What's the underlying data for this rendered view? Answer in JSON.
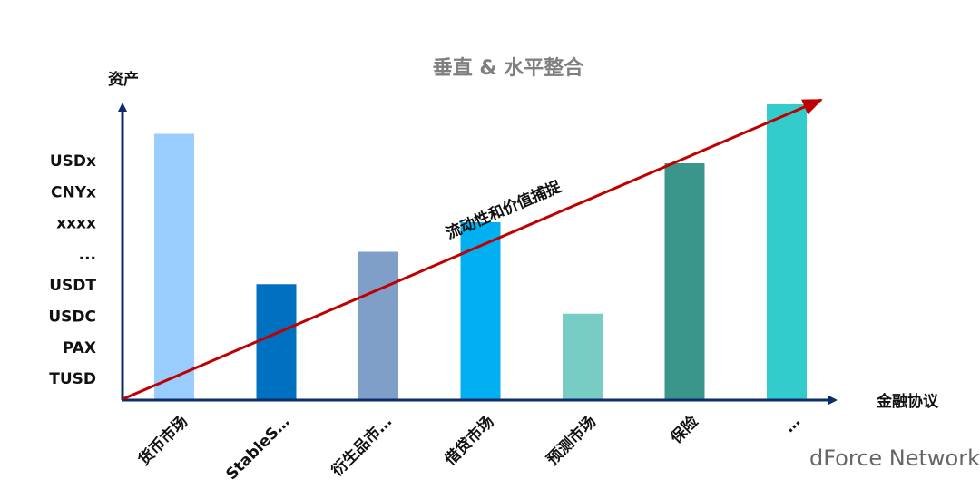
{
  "chart_data": {
    "type": "bar",
    "title": "垂直 & 水平整合",
    "y_label": "资产",
    "x_label": "金融协议",
    "annotation": "流动性和价值捕捉",
    "asset_labels": [
      "USDx",
      "CNYx",
      "xxxx",
      "...",
      "USDT",
      "USDC",
      "PAX",
      "TUSD"
    ],
    "categories": [
      "货币市场",
      "StableS…",
      "衍生品市…",
      "借贷市场",
      "预测市场",
      "保险",
      "…"
    ],
    "values": [
      90,
      39,
      50,
      60,
      29,
      80,
      100
    ],
    "colors": [
      "#99ccff",
      "#0070c0",
      "#7f9fc8",
      "#00b0f0",
      "#77cdc4",
      "#3a968a",
      "#33cccc"
    ],
    "ylim": [
      0,
      100
    ]
  },
  "watermark": "dForce Network"
}
